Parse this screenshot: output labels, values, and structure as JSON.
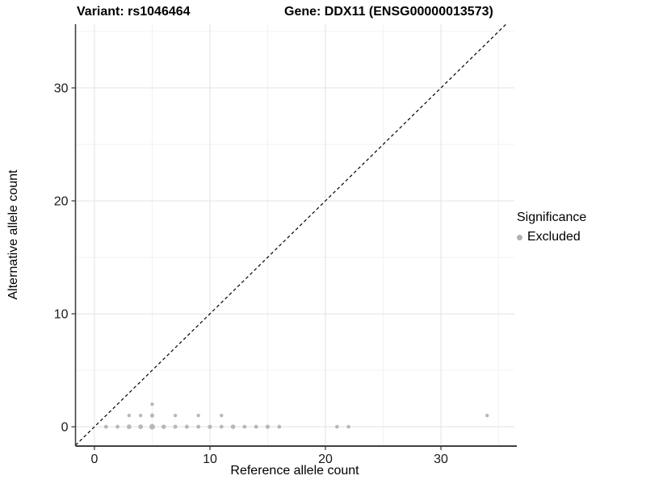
{
  "chart_data": {
    "type": "scatter",
    "title_left": "Variant: rs1046464",
    "title_right": "Gene: DDX11 (ENSG00000013573)",
    "xlabel": "Reference allele count",
    "ylabel": "Alternative allele count",
    "xlim": [
      -1.64,
      36.36
    ],
    "ylim": [
      -1.71,
      35.64
    ],
    "x_major_ticks": [
      0,
      10,
      20,
      30
    ],
    "x_minor_ticks": [
      5,
      15,
      25,
      35
    ],
    "y_major_ticks": [
      0,
      10,
      20,
      30
    ],
    "y_minor_ticks": [
      5,
      15,
      25,
      35
    ],
    "grid": true,
    "gridline_major_color": "#e4e4e4",
    "gridline_minor_color": "#f1f1f1",
    "axis_line_color": "#404040",
    "identity_line": {
      "style": "dashed",
      "color": "#000000"
    },
    "point_color": "#b0b0b0",
    "legend": {
      "title": "Significance",
      "position": "right",
      "items": [
        {
          "label": "Excluded",
          "color": "#b0b0b0"
        }
      ]
    },
    "series": [
      {
        "name": "Excluded",
        "points": [
          {
            "x": 1,
            "y": 0,
            "r": 2.4
          },
          {
            "x": 2,
            "y": 0,
            "r": 2.4
          },
          {
            "x": 3,
            "y": 0,
            "r": 2.9
          },
          {
            "x": 4,
            "y": 0,
            "r": 2.9
          },
          {
            "x": 5,
            "y": 0,
            "r": 3.5
          },
          {
            "x": 6,
            "y": 0,
            "r": 2.8
          },
          {
            "x": 7,
            "y": 0,
            "r": 2.5
          },
          {
            "x": 8,
            "y": 0,
            "r": 2.5
          },
          {
            "x": 9,
            "y": 0,
            "r": 2.4
          },
          {
            "x": 10,
            "y": 0,
            "r": 2.6
          },
          {
            "x": 11,
            "y": 0,
            "r": 2.4
          },
          {
            "x": 12,
            "y": 0,
            "r": 2.8
          },
          {
            "x": 13,
            "y": 0,
            "r": 2.4
          },
          {
            "x": 14,
            "y": 0,
            "r": 2.4
          },
          {
            "x": 15,
            "y": 0,
            "r": 2.6
          },
          {
            "x": 16,
            "y": 0,
            "r": 2.4
          },
          {
            "x": 21,
            "y": 0,
            "r": 2.3
          },
          {
            "x": 22,
            "y": 0,
            "r": 2.3
          },
          {
            "x": 3,
            "y": 1,
            "r": 2.2
          },
          {
            "x": 4,
            "y": 1,
            "r": 2.2
          },
          {
            "x": 5,
            "y": 1,
            "r": 2.6
          },
          {
            "x": 7,
            "y": 1,
            "r": 2.2
          },
          {
            "x": 9,
            "y": 1,
            "r": 2.2
          },
          {
            "x": 11,
            "y": 1,
            "r": 2.2
          },
          {
            "x": 34,
            "y": 1,
            "r": 2.2
          },
          {
            "x": 5,
            "y": 2,
            "r": 2.2
          }
        ]
      }
    ]
  }
}
